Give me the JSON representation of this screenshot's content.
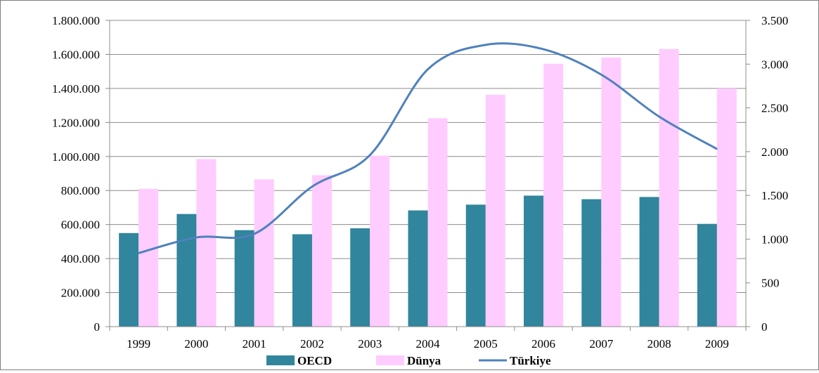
{
  "chart_data": {
    "type": "bar",
    "categories": [
      "1999",
      "2000",
      "2001",
      "2002",
      "2003",
      "2004",
      "2005",
      "2006",
      "2007",
      "2008",
      "2009"
    ],
    "series": [
      {
        "name": "OECD",
        "type": "bar",
        "axis": "left",
        "color": "#31859c",
        "values": [
          550000,
          662000,
          567000,
          543000,
          578000,
          683000,
          717000,
          770000,
          749000,
          762000,
          604000
        ]
      },
      {
        "name": "Dünya",
        "type": "bar",
        "axis": "left",
        "color": "#ffccff",
        "values": [
          810000,
          985000,
          866000,
          890000,
          1005000,
          1225000,
          1363000,
          1545000,
          1582000,
          1632000,
          1400000
        ]
      },
      {
        "name": "Türkiye",
        "type": "line",
        "axis": "right",
        "color": "#4f81bd",
        "values": [
          840,
          1020,
          1060,
          1600,
          1960,
          2940,
          3220,
          3170,
          2880,
          2400,
          2030
        ]
      }
    ],
    "y_left": {
      "range": [
        0,
        1800000
      ],
      "ticks": [
        0,
        200000,
        400000,
        600000,
        800000,
        1000000,
        1200000,
        1400000,
        1600000,
        1800000
      ],
      "tick_labels": [
        "0",
        "200.000",
        "400.000",
        "600.000",
        "800.000",
        "1.000.000",
        "1.200.000",
        "1.400.000",
        "1.600.000",
        "1.800.000"
      ]
    },
    "y_right": {
      "range": [
        0,
        3500
      ],
      "ticks": [
        0,
        500,
        1000,
        1500,
        2000,
        2500,
        3000,
        3500
      ],
      "tick_labels": [
        "0",
        "500",
        "1.000",
        "1.500",
        "2.000",
        "2.500",
        "3.000",
        "3.500"
      ]
    },
    "title": "",
    "xlabel": "",
    "ylabel": "",
    "grid": true,
    "legend": "bottom"
  }
}
